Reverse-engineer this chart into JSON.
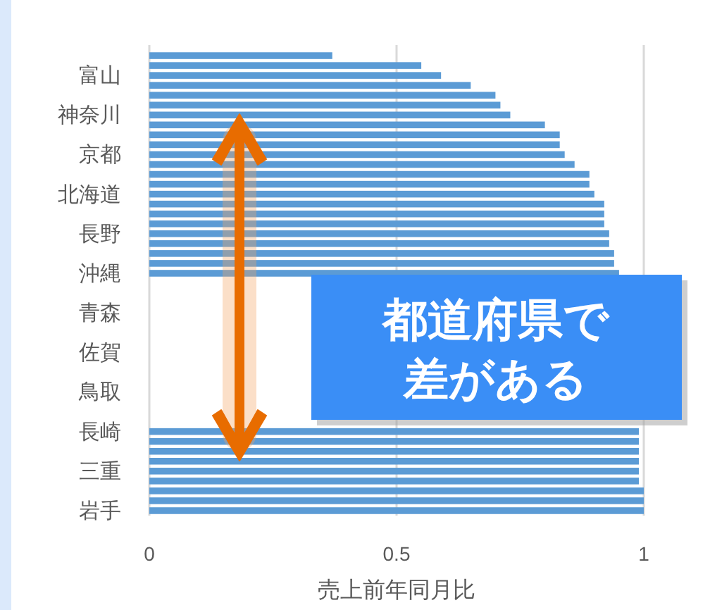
{
  "chart_data": {
    "type": "bar",
    "orientation": "horizontal",
    "xlabel": "売上前年同月比",
    "categories": [
      null,
      null,
      "富山",
      null,
      null,
      null,
      "神奈川",
      null,
      null,
      null,
      "京都",
      null,
      null,
      null,
      "北海道",
      null,
      null,
      null,
      "長野",
      null,
      null,
      null,
      "沖縄",
      null,
      null,
      null,
      "青森",
      null,
      null,
      null,
      "佐賀",
      null,
      null,
      null,
      "鳥取",
      null,
      null,
      null,
      "長崎",
      null,
      null,
      null,
      "三重",
      null,
      null,
      null,
      "岩手"
    ],
    "values": [
      0.37,
      0.55,
      0.59,
      0.65,
      0.7,
      0.71,
      0.73,
      0.8,
      0.83,
      0.83,
      0.84,
      0.86,
      0.89,
      0.89,
      0.9,
      0.92,
      0.92,
      0.92,
      0.93,
      0.93,
      0.94,
      0.94,
      0.95,
      null,
      null,
      null,
      null,
      null,
      null,
      null,
      null,
      null,
      null,
      null,
      null,
      null,
      null,
      null,
      0.99,
      0.99,
      0.99,
      0.99,
      0.99,
      0.99,
      1.0,
      1.0,
      1.0
    ],
    "color": "#5b9bd5",
    "xlim": [
      0,
      1
    ],
    "xticks": [
      0,
      0.5,
      1
    ],
    "grid": "x",
    "annotations": [
      "都道府県で",
      "差がある"
    ]
  }
}
